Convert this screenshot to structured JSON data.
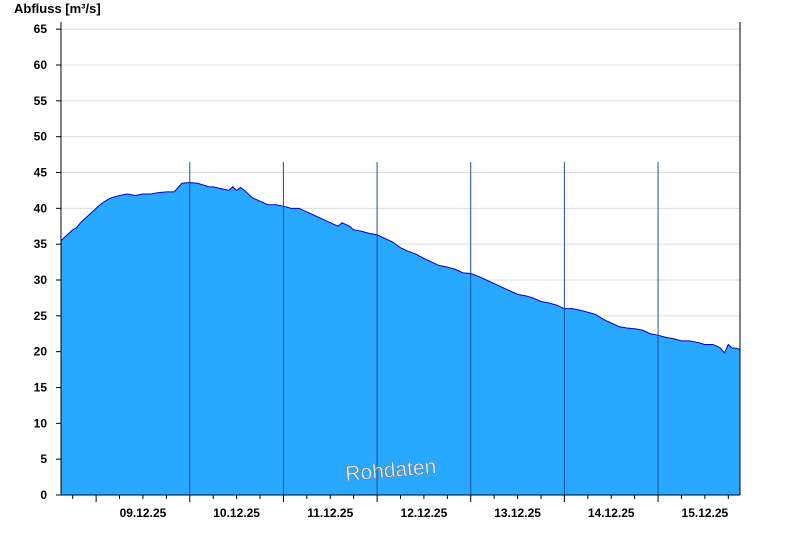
{
  "chart_data": {
    "type": "area",
    "ylabel": "Abfluss [m³/s]",
    "watermark": "Rohdaten",
    "ylim": [
      0,
      66
    ],
    "yticks": [
      0,
      5,
      10,
      15,
      20,
      25,
      30,
      35,
      40,
      45,
      50,
      55,
      60,
      65
    ],
    "xlim": [
      "08.12.25 15:00",
      "15.12.25 21:00"
    ],
    "xticks": [
      "09.12.25",
      "10.12.25",
      "11.12.25",
      "12.12.25",
      "13.12.25",
      "14.12.25",
      "15.12.25"
    ],
    "day_separators": [
      "10.12.25 00:00",
      "11.12.25 00:00",
      "12.12.25 00:00",
      "13.12.25 00:00",
      "14.12.25 00:00",
      "15.12.25 00:00"
    ],
    "grid": true,
    "colors": {
      "fill": "#29a8ff",
      "line": "#0000cc",
      "grid": "#dcdcdc",
      "separator": "#1a4f9a"
    },
    "series": [
      {
        "x": [
          "08.12.25 15:00",
          "08.12.25 16:00",
          "08.12.25 17:00",
          "08.12.25 18:00",
          "08.12.25 19:00",
          "08.12.25 20:00",
          "08.12.25 21:00",
          "08.12.25 22:00",
          "08.12.25 23:00",
          "09.12.25 00:00",
          "09.12.25 01:00",
          "09.12.25 02:00",
          "09.12.25 03:00",
          "09.12.25 04:00",
          "09.12.25 06:00",
          "09.12.25 08:00",
          "09.12.25 10:00",
          "09.12.25 12:00",
          "09.12.25 14:00",
          "09.12.25 16:00",
          "09.12.25 18:00",
          "09.12.25 20:00",
          "09.12.25 22:00",
          "10.12.25 00:00",
          "10.12.25 02:00",
          "10.12.25 05:00",
          "10.12.25 06:00",
          "10.12.25 10:00",
          "10.12.25 11:00",
          "10.12.25 12:00",
          "10.12.25 13:00",
          "10.12.25 14:00",
          "10.12.25 15:00",
          "10.12.25 16:00",
          "10.12.25 18:00",
          "10.12.25 20:00",
          "10.12.25 22:00",
          "11.12.25 00:00",
          "11.12.25 02:00",
          "11.12.25 04:00",
          "11.12.25 06:00",
          "11.12.25 08:00",
          "11.12.25 10:00",
          "11.12.25 12:00",
          "11.12.25 14:00",
          "11.12.25 15:00",
          "11.12.25 17:00",
          "11.12.25 18:00",
          "11.12.25 20:00",
          "11.12.25 22:00",
          "12.12.25 00:00",
          "12.12.25 02:00",
          "12.12.25 04:00",
          "12.12.25 06:00",
          "12.12.25 08:00",
          "12.12.25 10:00",
          "12.12.25 12:00",
          "12.12.25 14:00",
          "12.12.25 16:00",
          "12.12.25 18:00",
          "12.12.25 20:00",
          "12.12.25 22:00",
          "13.12.25 00:00",
          "13.12.25 02:00",
          "13.12.25 04:00",
          "13.12.25 06:00",
          "13.12.25 08:00",
          "13.12.25 10:00",
          "13.12.25 12:00",
          "13.12.25 14:00",
          "13.12.25 16:00",
          "13.12.25 18:00",
          "13.12.25 20:00",
          "13.12.25 22:00",
          "14.12.25 00:00",
          "14.12.25 02:00",
          "14.12.25 04:00",
          "14.12.25 06:00",
          "14.12.25 08:00",
          "14.12.25 10:00",
          "14.12.25 12:00",
          "14.12.25 14:00",
          "14.12.25 16:00",
          "14.12.25 18:00",
          "14.12.25 20:00",
          "14.12.25 22:00",
          "15.12.25 00:00",
          "15.12.25 02:00",
          "15.12.25 04:00",
          "15.12.25 06:00",
          "15.12.25 08:00",
          "15.12.25 10:00",
          "15.12.25 12:00",
          "15.12.25 14:00",
          "15.12.25 15:00",
          "15.12.25 16:00",
          "15.12.25 17:00",
          "15.12.25 18:00",
          "15.12.25 19:00",
          "15.12.25 20:00",
          "15.12.25 21:00"
        ],
        "values": [
          35.5,
          36.0,
          36.5,
          37.0,
          37.3,
          38.0,
          38.5,
          39.0,
          39.5,
          40.0,
          40.5,
          40.9,
          41.2,
          41.5,
          41.8,
          42.0,
          41.8,
          42.0,
          42.0,
          42.2,
          42.3,
          42.3,
          43.5,
          43.6,
          43.5,
          43.0,
          43.0,
          42.5,
          43.0,
          42.5,
          42.9,
          42.5,
          42.0,
          41.5,
          41.0,
          40.5,
          40.5,
          40.3,
          40.0,
          40.0,
          39.5,
          39.0,
          38.5,
          38.0,
          37.5,
          38.0,
          37.5,
          37.0,
          36.8,
          36.5,
          36.3,
          35.8,
          35.3,
          34.5,
          34.0,
          33.6,
          33.0,
          32.5,
          32.0,
          31.8,
          31.5,
          31.0,
          30.9,
          30.5,
          30.0,
          29.5,
          29.0,
          28.5,
          28.0,
          27.8,
          27.5,
          27.0,
          26.8,
          26.5,
          26.0,
          26.0,
          25.8,
          25.5,
          25.2,
          24.5,
          24.0,
          23.5,
          23.3,
          23.2,
          23.0,
          22.5,
          22.3,
          22.0,
          21.8,
          21.5,
          21.5,
          21.3,
          21.0,
          21.0,
          20.8,
          20.5,
          19.8,
          21.0,
          20.5,
          20.5,
          20.3
        ]
      }
    ]
  }
}
